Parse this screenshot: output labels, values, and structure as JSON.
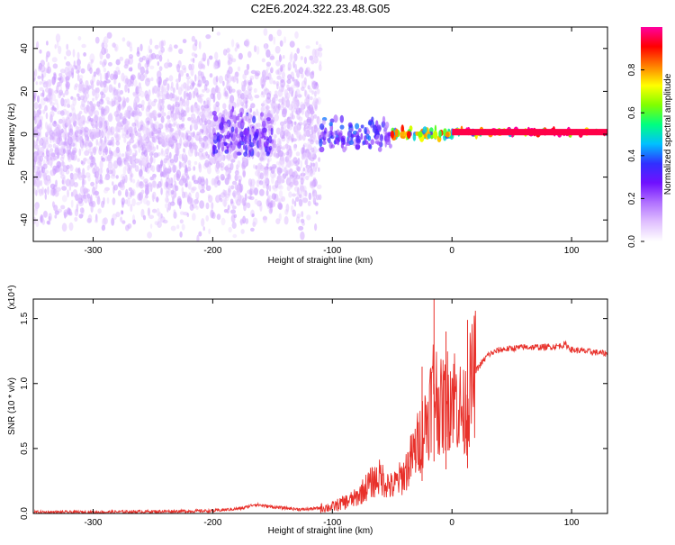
{
  "page_title": "C2E6.2024.322.23.48.G05",
  "chart_data": [
    {
      "type": "heatmap",
      "title": "C2E6.2024.322.23.48.G05",
      "xlabel": "Height of straight line (km)",
      "ylabel": "Frequency (Hz)",
      "xlim": [
        -350,
        130
      ],
      "ylim": [
        -50,
        50
      ],
      "x_ticks": [
        -300,
        -200,
        -100,
        0,
        100
      ],
      "x_tick_labels": [
        "-300",
        "-200",
        "-100",
        "0",
        "100"
      ],
      "y_ticks": [
        -40,
        -20,
        0,
        20,
        40
      ],
      "y_tick_labels": [
        "-40",
        "-20",
        "0",
        "20",
        "40"
      ],
      "colorbar": {
        "label": "Normalized spectral amplitude",
        "range": [
          0,
          1
        ],
        "ticks": [
          0,
          0.2,
          0.4,
          0.6,
          0.8
        ],
        "tick_labels": [
          "0.0",
          "0.2",
          "0.4",
          "0.6",
          "0.8"
        ],
        "colormap": [
          "#ffffff",
          "#e0c0ff",
          "#b070ff",
          "#7010ff",
          "#3030ff",
          "#00c0ff",
          "#00ff80",
          "#80ff00",
          "#ffff00",
          "#ff8000",
          "#ff0000",
          "#ff00a0"
        ]
      },
      "regions": [
        {
          "x_range": [
            -350,
            -110
          ],
          "freq_span": 50,
          "amplitude": 0.12,
          "note": "broadband noise"
        },
        {
          "x_range": [
            -200,
            -150
          ],
          "freq_span": 12,
          "amplitude": 0.3
        },
        {
          "x_range": [
            -110,
            -50
          ],
          "freq_span": 8,
          "amplitude": 0.35
        },
        {
          "x_range": [
            -50,
            0
          ],
          "freq_span": 3,
          "amplitude": 0.75
        },
        {
          "x_range": [
            0,
            130
          ],
          "freq_span": 1.5,
          "amplitude": 0.95,
          "center_freq": 1
        }
      ],
      "grid": false
    },
    {
      "type": "line",
      "xlabel": "Height of straight line (km)",
      "ylabel": "SNR (10 * v/v)",
      "y_multiplier": "(x10⁴)",
      "xlim": [
        -350,
        130
      ],
      "ylim": [
        0,
        1.65
      ],
      "x_ticks": [
        -300,
        -200,
        -100,
        0,
        100
      ],
      "x_tick_labels": [
        "-300",
        "-200",
        "-100",
        "0",
        "100"
      ],
      "y_ticks": [
        0,
        0.5,
        1.0,
        1.5
      ],
      "y_tick_labels": [
        "0.0",
        "0.5",
        "1.0",
        "1.5"
      ],
      "line_color": "#e8302a",
      "series": [
        {
          "name": "",
          "x": [
            -350,
            -300,
            -250,
            -200,
            -175,
            -165,
            -150,
            -125,
            -100,
            -80,
            -70,
            -60,
            -50,
            -40,
            -30,
            -20,
            -15,
            -10,
            -5,
            0,
            5,
            10,
            15,
            20,
            30,
            40,
            50,
            60,
            70,
            80,
            90,
            95,
            100,
            110,
            120,
            130
          ],
          "y": [
            0.01,
            0.01,
            0.015,
            0.02,
            0.04,
            0.07,
            0.05,
            0.03,
            0.05,
            0.12,
            0.22,
            0.28,
            0.2,
            0.3,
            0.5,
            0.75,
            1.0,
            0.8,
            0.85,
            0.95,
            0.85,
            0.75,
            0.95,
            1.1,
            1.22,
            1.26,
            1.27,
            1.28,
            1.28,
            1.28,
            1.29,
            1.3,
            1.26,
            1.25,
            1.24,
            1.23
          ]
        }
      ],
      "spikes": [
        {
          "x": -15,
          "y": 1.65
        },
        {
          "x": 13,
          "y": 1.49
        },
        {
          "x": -25,
          "y": 1.13
        },
        {
          "x": -5,
          "y": 1.4
        }
      ],
      "grid": false
    }
  ]
}
